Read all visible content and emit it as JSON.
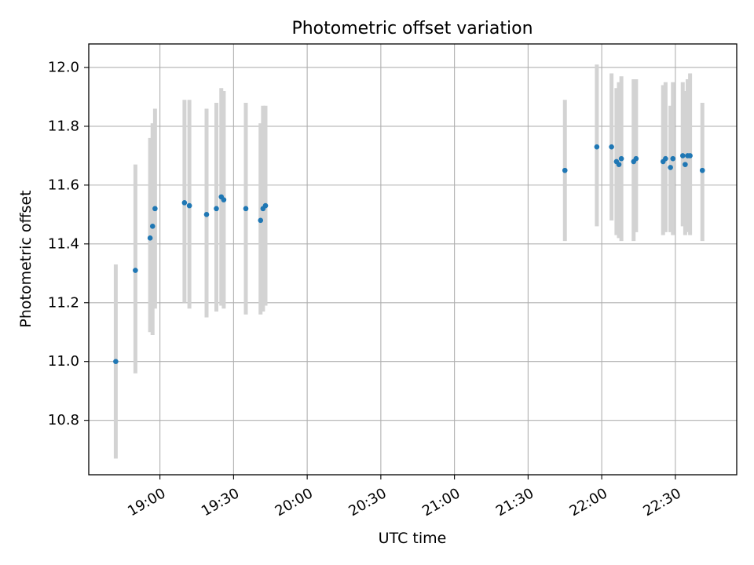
{
  "chart_data": {
    "type": "scatter",
    "title": "Photometric offset variation",
    "xlabel": "UTC time",
    "ylabel": "Photometric offset",
    "x_ticks": [
      "19:00",
      "19:30",
      "20:00",
      "20:30",
      "21:00",
      "21:30",
      "22:00",
      "22:30"
    ],
    "y_ticks": [
      "10.8",
      "11.0",
      "11.2",
      "11.4",
      "11.6",
      "11.8",
      "12.0"
    ],
    "xlim": [
      "18:31",
      "22:55"
    ],
    "ylim": [
      10.615,
      12.08
    ],
    "grid": true,
    "legend": "none",
    "colors": {
      "points": "#1f77b4",
      "errorbars": "#d3d3d3",
      "grid": "#b0b0b0"
    },
    "points": [
      {
        "time": "18:42",
        "y": 11.0,
        "err_low": 10.67,
        "err_high": 11.33
      },
      {
        "time": "18:50",
        "y": 11.31,
        "err_low": 10.96,
        "err_high": 11.67
      },
      {
        "time": "18:56",
        "y": 11.42,
        "err_low": 11.1,
        "err_high": 11.76
      },
      {
        "time": "18:57",
        "y": 11.46,
        "err_low": 11.09,
        "err_high": 11.81
      },
      {
        "time": "18:58",
        "y": 11.52,
        "err_low": 11.18,
        "err_high": 11.86
      },
      {
        "time": "19:10",
        "y": 11.54,
        "err_low": 11.2,
        "err_high": 11.89
      },
      {
        "time": "19:12",
        "y": 11.53,
        "err_low": 11.18,
        "err_high": 11.89
      },
      {
        "time": "19:19",
        "y": 11.5,
        "err_low": 11.15,
        "err_high": 11.86
      },
      {
        "time": "19:23",
        "y": 11.52,
        "err_low": 11.17,
        "err_high": 11.88
      },
      {
        "time": "19:25",
        "y": 11.56,
        "err_low": 11.19,
        "err_high": 11.93
      },
      {
        "time": "19:26",
        "y": 11.55,
        "err_low": 11.18,
        "err_high": 11.92
      },
      {
        "time": "19:35",
        "y": 11.52,
        "err_low": 11.16,
        "err_high": 11.88
      },
      {
        "time": "19:41",
        "y": 11.48,
        "err_low": 11.16,
        "err_high": 11.81
      },
      {
        "time": "19:42",
        "y": 11.52,
        "err_low": 11.17,
        "err_high": 11.87
      },
      {
        "time": "19:43",
        "y": 11.53,
        "err_low": 11.19,
        "err_high": 11.87
      },
      {
        "time": "21:45",
        "y": 11.65,
        "err_low": 11.41,
        "err_high": 11.89
      },
      {
        "time": "21:58",
        "y": 11.73,
        "err_low": 11.46,
        "err_high": 12.01
      },
      {
        "time": "22:04",
        "y": 11.73,
        "err_low": 11.48,
        "err_high": 11.98
      },
      {
        "time": "22:06",
        "y": 11.68,
        "err_low": 11.43,
        "err_high": 11.93
      },
      {
        "time": "22:07",
        "y": 11.67,
        "err_low": 11.42,
        "err_high": 11.95
      },
      {
        "time": "22:08",
        "y": 11.69,
        "err_low": 11.41,
        "err_high": 11.97
      },
      {
        "time": "22:13",
        "y": 11.68,
        "err_low": 11.41,
        "err_high": 11.96
      },
      {
        "time": "22:14",
        "y": 11.69,
        "err_low": 11.44,
        "err_high": 11.96
      },
      {
        "time": "22:25",
        "y": 11.68,
        "err_low": 11.43,
        "err_high": 11.94
      },
      {
        "time": "22:26",
        "y": 11.69,
        "err_low": 11.44,
        "err_high": 11.95
      },
      {
        "time": "22:28",
        "y": 11.66,
        "err_low": 11.44,
        "err_high": 11.87
      },
      {
        "time": "22:29",
        "y": 11.69,
        "err_low": 11.43,
        "err_high": 11.95
      },
      {
        "time": "22:33",
        "y": 11.7,
        "err_low": 11.46,
        "err_high": 11.95
      },
      {
        "time": "22:34",
        "y": 11.67,
        "err_low": 11.43,
        "err_high": 11.92
      },
      {
        "time": "22:35",
        "y": 11.7,
        "err_low": 11.44,
        "err_high": 11.96
      },
      {
        "time": "22:36",
        "y": 11.7,
        "err_low": 11.43,
        "err_high": 11.98
      },
      {
        "time": "22:41",
        "y": 11.65,
        "err_low": 11.41,
        "err_high": 11.88
      }
    ]
  }
}
